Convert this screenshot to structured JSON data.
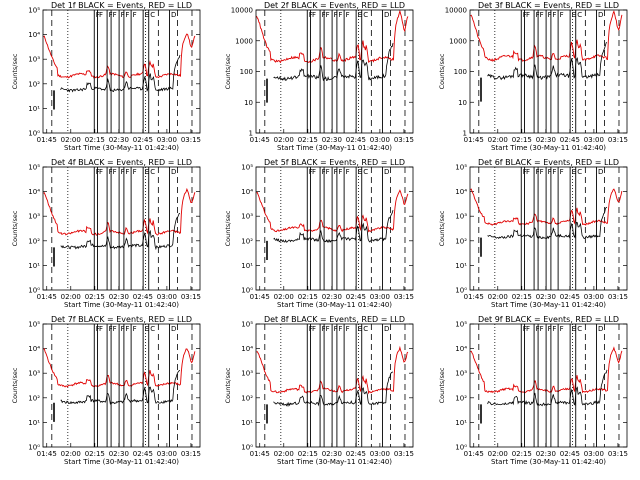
{
  "chart_data": [
    {
      "type": "line",
      "panel": 1,
      "title": "Det 1f BLACK = Events, RED = LLD",
      "xlabel": "Start Time (30-May-11 01:42:40)",
      "ylabel": "Counts/sec",
      "yscale": "log",
      "ylim": [
        1,
        100000
      ],
      "yticks": [
        "10⁰",
        "10¹",
        "10²",
        "10³",
        "10⁴",
        "10⁵"
      ],
      "ytick_values": [
        1,
        10,
        100,
        1000,
        10000,
        100000
      ],
      "xlim_minutes": [
        0,
        98
      ],
      "xticks": [
        "01:45",
        "02:00",
        "02:15",
        "02:30",
        "02:45",
        "03:00",
        "03:15"
      ],
      "xtick_minutes": [
        2.33,
        17.33,
        32.33,
        47.33,
        62.33,
        77.33,
        92.33
      ],
      "series": [
        {
          "color": "#e00000",
          "values": "lld_profile",
          "level": 220,
          "early_peak": 8000,
          "late_peak": 12000
        },
        {
          "color": "#000000",
          "values": "events_profile",
          "level": 60,
          "late_peak": 1500
        }
      ]
    },
    {
      "type": "line",
      "panel": 2,
      "title": "Det 2f BLACK = Events, RED = LLD",
      "xlabel": "Start Time (30-May-11 01:42:40)",
      "ylabel": "Counts/sec",
      "yscale": "log",
      "ylim": [
        1,
        10000
      ],
      "yticks": [
        "1",
        "10",
        "100",
        "1000",
        "10000"
      ],
      "ytick_values": [
        1,
        10,
        100,
        1000,
        10000
      ],
      "xlim_minutes": [
        0,
        98
      ],
      "xticks": [
        "01:45",
        "02:00",
        "02:15",
        "02:30",
        "02:45",
        "03:00",
        "03:15"
      ],
      "xtick_minutes": [
        2.33,
        17.33,
        32.33,
        47.33,
        62.33,
        77.33,
        92.33
      ],
      "series": [
        {
          "color": "#e00000",
          "level": 250,
          "early_peak": 6000,
          "late_peak": 9000
        },
        {
          "color": "#000000",
          "level": 65,
          "late_peak": 900
        }
      ]
    },
    {
      "type": "line",
      "panel": 3,
      "title": "Det 3f BLACK = Events, RED = LLD",
      "xlabel": "Start Time (30-May-11 01:42:40)",
      "ylabel": "Counts/sec",
      "yscale": "log",
      "ylim": [
        1,
        10000
      ],
      "yticks": [
        "1",
        "10",
        "100",
        "1000",
        "10000"
      ],
      "ytick_values": [
        1,
        10,
        100,
        1000,
        10000
      ],
      "xlim_minutes": [
        0,
        98
      ],
      "xticks": [
        "01:45",
        "02:00",
        "02:15",
        "02:30",
        "02:45",
        "03:00",
        "03:15"
      ],
      "xtick_minutes": [
        2.33,
        17.33,
        32.33,
        47.33,
        62.33,
        77.33,
        92.33
      ],
      "series": [
        {
          "color": "#e00000",
          "level": 280,
          "early_peak": 7000,
          "late_peak": 9000
        },
        {
          "color": "#000000",
          "level": 70,
          "late_peak": 1000
        }
      ]
    },
    {
      "type": "line",
      "panel": 4,
      "title": "Det 4f BLACK = Events, RED = LLD",
      "xlabel": "Start Time (30-May-11 01:42:40)",
      "ylabel": "Counts/sec",
      "yscale": "log",
      "ylim": [
        1,
        100000
      ],
      "yticks": [
        "10⁰",
        "10¹",
        "10²",
        "10³",
        "10⁴",
        "10⁵"
      ],
      "ytick_values": [
        1,
        10,
        100,
        1000,
        10000,
        100000
      ],
      "xlim_minutes": [
        0,
        98
      ],
      "xticks": [
        "01:45",
        "02:00",
        "02:15",
        "02:30",
        "02:45",
        "03:00",
        "03:15"
      ],
      "xtick_minutes": [
        2.33,
        17.33,
        32.33,
        47.33,
        62.33,
        77.33,
        92.33
      ],
      "series": [
        {
          "color": "#e00000",
          "level": 220,
          "early_peak": 9000,
          "late_peak": 13000
        },
        {
          "color": "#000000",
          "level": 60,
          "late_peak": 1600
        }
      ]
    },
    {
      "type": "line",
      "panel": 5,
      "title": "Det 5f BLACK = Events, RED = LLD",
      "xlabel": "Start Time (30-May-11 01:42:40)",
      "ylabel": "Counts/sec",
      "yscale": "log",
      "ylim": [
        1,
        100000
      ],
      "yticks": [
        "10⁰",
        "10¹",
        "10²",
        "10³",
        "10⁴",
        "10⁵"
      ],
      "ytick_values": [
        1,
        10,
        100,
        1000,
        10000,
        100000
      ],
      "xlim_minutes": [
        0,
        98
      ],
      "xticks": [
        "01:45",
        "02:00",
        "02:15",
        "02:30",
        "02:45",
        "03:00",
        "03:15"
      ],
      "xtick_minutes": [
        2.33,
        17.33,
        32.33,
        47.33,
        62.33,
        77.33,
        92.33
      ],
      "series": [
        {
          "color": "#e00000",
          "level": 300,
          "early_peak": 9000,
          "late_peak": 12000
        },
        {
          "color": "#000000",
          "level": 110,
          "late_peak": 1800
        }
      ]
    },
    {
      "type": "line",
      "panel": 6,
      "title": "Det 6f BLACK = Events, RED = LLD",
      "xlabel": "Start Time (30-May-11 01:42:40)",
      "ylabel": "Counts/sec",
      "yscale": "log",
      "ylim": [
        1,
        100000
      ],
      "yticks": [
        "10⁰",
        "10¹",
        "10²",
        "10³",
        "10⁴",
        "10⁵"
      ],
      "ytick_values": [
        1,
        10,
        100,
        1000,
        10000,
        100000
      ],
      "xlim_minutes": [
        0,
        98
      ],
      "xticks": [
        "01:45",
        "02:00",
        "02:15",
        "02:30",
        "02:45",
        "03:00",
        "03:15"
      ],
      "xtick_minutes": [
        2.33,
        17.33,
        32.33,
        47.33,
        62.33,
        77.33,
        92.33
      ],
      "series": [
        {
          "color": "#e00000",
          "level": 550,
          "early_peak": 12000,
          "late_peak": 14000
        },
        {
          "color": "#000000",
          "level": 150,
          "late_peak": 2500
        }
      ]
    },
    {
      "type": "line",
      "panel": 7,
      "title": "Det 7f BLACK = Events, RED = LLD",
      "xlabel": "Start Time (30-May-11 01:42:40)",
      "ylabel": "Counts/sec",
      "yscale": "log",
      "ylim": [
        1,
        100000
      ],
      "yticks": [
        "10⁰",
        "10¹",
        "10²",
        "10³",
        "10⁴",
        "10⁵"
      ],
      "ytick_values": [
        1,
        10,
        100,
        1000,
        10000,
        100000
      ],
      "xlim_minutes": [
        0,
        98
      ],
      "xticks": [
        "01:45",
        "02:00",
        "02:15",
        "02:30",
        "02:45",
        "03:00",
        "03:15"
      ],
      "xtick_minutes": [
        2.33,
        17.33,
        32.33,
        47.33,
        62.33,
        77.33,
        92.33
      ],
      "series": [
        {
          "color": "#e00000",
          "level": 350,
          "early_peak": 9000,
          "late_peak": 11000
        },
        {
          "color": "#000000",
          "level": 70,
          "late_peak": 1500
        }
      ]
    },
    {
      "type": "line",
      "panel": 8,
      "title": "Det 8f BLACK = Events, RED = LLD",
      "xlabel": "Start Time (30-May-11 01:42:40)",
      "ylabel": "Counts/sec",
      "yscale": "log",
      "ylim": [
        1,
        100000
      ],
      "yticks": [
        "10⁰",
        "10¹",
        "10²",
        "10³",
        "10⁴",
        "10⁵"
      ],
      "ytick_values": [
        1,
        10,
        100,
        1000,
        10000,
        100000
      ],
      "xlim_minutes": [
        0,
        98
      ],
      "xticks": [
        "01:45",
        "02:00",
        "02:15",
        "02:30",
        "02:45",
        "03:00",
        "03:15"
      ],
      "xtick_minutes": [
        2.33,
        17.33,
        32.33,
        47.33,
        62.33,
        77.33,
        92.33
      ],
      "series": [
        {
          "color": "#e00000",
          "level": 200,
          "early_peak": 8000,
          "late_peak": 11000
        },
        {
          "color": "#000000",
          "level": 60,
          "late_peak": 1400
        }
      ]
    },
    {
      "type": "line",
      "panel": 9,
      "title": "Det 9f BLACK = Events, RED = LLD",
      "xlabel": "Start Time (30-May-11 01:42:40)",
      "ylabel": "Counts/sec",
      "yscale": "log",
      "ylim": [
        1,
        100000
      ],
      "yticks": [
        "10⁰",
        "10¹",
        "10²",
        "10³",
        "10⁴",
        "10⁵"
      ],
      "ytick_values": [
        1,
        10,
        100,
        1000,
        10000,
        100000
      ],
      "xlim_minutes": [
        0,
        98
      ],
      "xticks": [
        "01:45",
        "02:00",
        "02:15",
        "02:30",
        "02:45",
        "03:00",
        "03:15"
      ],
      "xtick_minutes": [
        2.33,
        17.33,
        32.33,
        47.33,
        62.33,
        77.33,
        92.33
      ],
      "series": [
        {
          "color": "#e00000",
          "level": 200,
          "early_peak": 8000,
          "late_peak": 11000
        },
        {
          "color": "#000000",
          "level": 60,
          "late_peak": 1400
        }
      ]
    }
  ],
  "markers": {
    "solid_lines_minutes": [
      32.0,
      34.0,
      40.0,
      42.5,
      47.5,
      50.5,
      55.0,
      62.5,
      66.0,
      79.0
    ],
    "dotted_lines_minutes": [
      15.5,
      64.0
    ],
    "dashed_lines_minutes": [
      5.5,
      72.0,
      84.0,
      93.0
    ],
    "top_labels": [
      "F",
      "F",
      "F",
      "F",
      "F",
      "F",
      "F",
      "E",
      "C",
      "D"
    ]
  }
}
